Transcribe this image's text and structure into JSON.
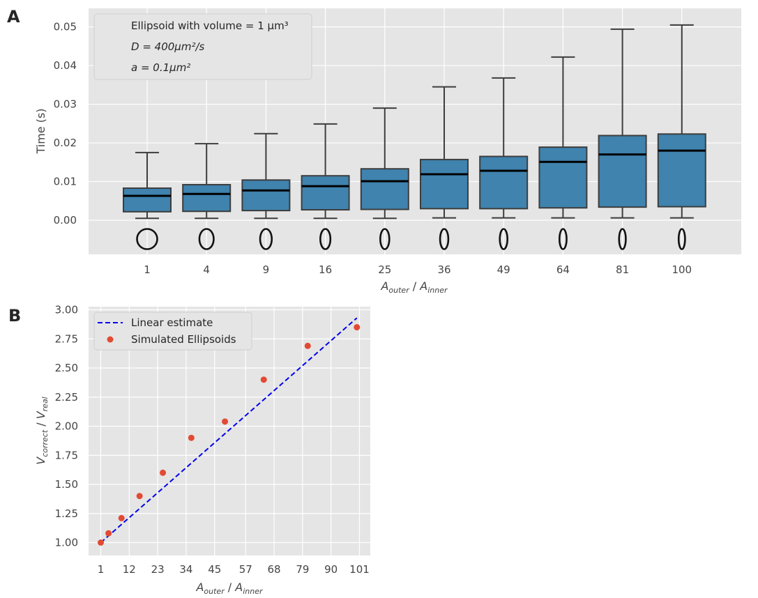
{
  "chart_data": [
    {
      "panel": "A",
      "type": "box",
      "categories": [
        "1",
        "4",
        "9",
        "16",
        "25",
        "36",
        "49",
        "64",
        "81",
        "100"
      ],
      "boxes": [
        {
          "whisker_low": 0.0005,
          "q1": 0.0022,
          "median": 0.0063,
          "q3": 0.0083,
          "whisker_high": 0.0175
        },
        {
          "whisker_low": 0.0005,
          "q1": 0.0023,
          "median": 0.0068,
          "q3": 0.0092,
          "whisker_high": 0.0198
        },
        {
          "whisker_low": 0.0005,
          "q1": 0.0025,
          "median": 0.0077,
          "q3": 0.0104,
          "whisker_high": 0.0224
        },
        {
          "whisker_low": 0.0005,
          "q1": 0.0027,
          "median": 0.0088,
          "q3": 0.0115,
          "whisker_high": 0.0249
        },
        {
          "whisker_low": 0.0005,
          "q1": 0.0028,
          "median": 0.0101,
          "q3": 0.0133,
          "whisker_high": 0.029
        },
        {
          "whisker_low": 0.0006,
          "q1": 0.003,
          "median": 0.0119,
          "q3": 0.0157,
          "whisker_high": 0.0345
        },
        {
          "whisker_low": 0.0006,
          "q1": 0.003,
          "median": 0.0128,
          "q3": 0.0165,
          "whisker_high": 0.0368
        },
        {
          "whisker_low": 0.0006,
          "q1": 0.0032,
          "median": 0.0151,
          "q3": 0.0189,
          "whisker_high": 0.0422
        },
        {
          "whisker_low": 0.0006,
          "q1": 0.0034,
          "median": 0.017,
          "q3": 0.0219,
          "whisker_high": 0.0494
        },
        {
          "whisker_low": 0.0006,
          "q1": 0.0035,
          "median": 0.018,
          "q3": 0.0223,
          "whisker_high": 0.0505
        }
      ],
      "ellipse_aspect_ratios": [
        1,
        4,
        9,
        16,
        25,
        36,
        49,
        64,
        81,
        100
      ],
      "ylabel": "Time (s)",
      "xlabel_main": "A",
      "xlabel_sub1": "outer",
      "xlabel_sep": " / ",
      "xlabel_main2": "A",
      "xlabel_sub2": "inner",
      "yticks": [
        "0.00",
        "0.01",
        "0.02",
        "0.03",
        "0.04",
        "0.05"
      ],
      "ylim": [
        -0.009,
        0.055
      ],
      "legend": {
        "placement": "top-left",
        "line1": "Ellipsoid with volume = 1 μm³",
        "line2": "D = 400μm²/s",
        "line3": "a = 0.1μm²"
      },
      "box_color": "#3f83ae",
      "grid": true
    },
    {
      "panel": "B",
      "type": "line+scatter",
      "series": [
        {
          "name": "Linear estimate",
          "style": "dashed",
          "color": "#0000ee",
          "x": [
            1,
            100
          ],
          "y": [
            1.0,
            2.93
          ]
        },
        {
          "name": "Simulated Ellipsoids",
          "style": "points",
          "color": "#e24a33",
          "x": [
            1,
            4,
            9,
            16,
            25,
            36,
            49,
            64,
            81,
            100
          ],
          "y": [
            1.0,
            1.08,
            1.21,
            1.4,
            1.6,
            1.9,
            2.04,
            2.4,
            2.69,
            2.85
          ]
        }
      ],
      "xticks": [
        "1",
        "12",
        "23",
        "34",
        "45",
        "57",
        "68",
        "79",
        "90",
        "101"
      ],
      "yticks": [
        "1.00",
        "1.25",
        "1.50",
        "1.75",
        "2.00",
        "2.25",
        "2.50",
        "2.75",
        "3.00"
      ],
      "xlim": [
        -3,
        105
      ],
      "ylim": [
        0.9,
        3.02
      ],
      "legend": {
        "placement": "top-left"
      },
      "grid": true
    }
  ],
  "panel_letters": {
    "a": "A",
    "b": "B"
  },
  "ylabel_b": {
    "main1": "V",
    "sub1": "correct",
    "sep": " / ",
    "main2": "V",
    "sub2": "real"
  }
}
